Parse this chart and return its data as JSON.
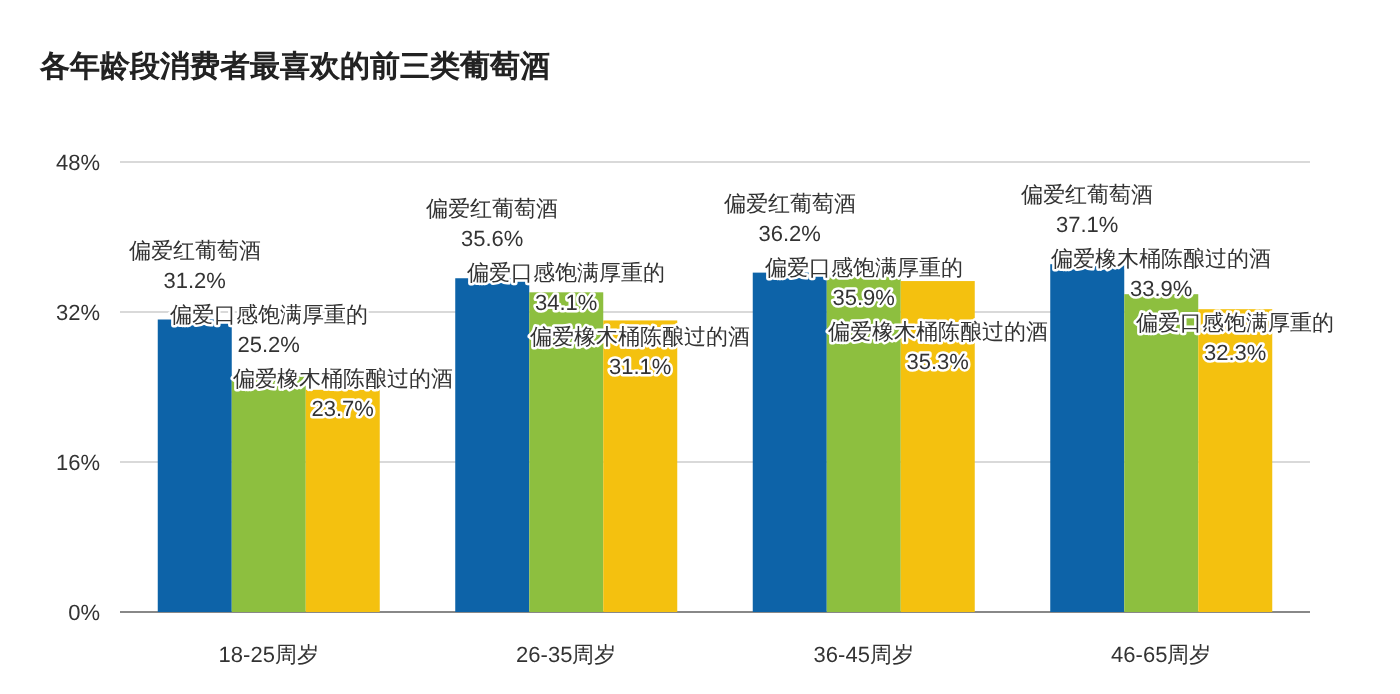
{
  "chart_data": {
    "type": "bar",
    "title": "各年龄段消费者最喜欢的前三类葡萄酒",
    "categories": [
      "18-25周岁",
      "26-35周岁",
      "36-45周岁",
      "46-65周岁"
    ],
    "ylim": [
      0,
      48
    ],
    "yticks": [
      {
        "value": 0,
        "label": "0%"
      },
      {
        "value": 16,
        "label": "16%"
      },
      {
        "value": 32,
        "label": "32%"
      },
      {
        "value": 48,
        "label": "48%"
      }
    ],
    "grid": "y",
    "series": [
      {
        "color": "#0d63a8",
        "values": [
          31.2,
          35.6,
          36.2,
          37.1
        ],
        "value_labels": [
          "偏爱红葡萄酒\n31.2%",
          "偏爱红葡萄酒\n35.6%",
          "偏爱红葡萄酒\n36.2%",
          "偏爱红葡萄酒\n37.1%"
        ]
      },
      {
        "color": "#8dbf3f",
        "values": [
          25.2,
          34.1,
          35.9,
          33.9
        ],
        "value_labels": [
          "偏爱口感饱满厚重的\n25.2%",
          "偏爱口感饱满厚重的\n34.1%",
          "偏爱口感饱满厚重的\n35.9%",
          "偏爱橡木桶陈酿过的酒\n33.9%"
        ]
      },
      {
        "color": "#f4c10f",
        "values": [
          23.7,
          31.1,
          35.3,
          32.3
        ],
        "value_labels": [
          "偏爱橡木桶陈酿过的酒\n23.7%",
          "偏爱橡木桶陈酿过的酒\n31.1%",
          "偏爱橡木桶陈酿过的酒\n35.3%",
          "偏爱口感饱满厚重的\n32.3%"
        ]
      }
    ]
  }
}
